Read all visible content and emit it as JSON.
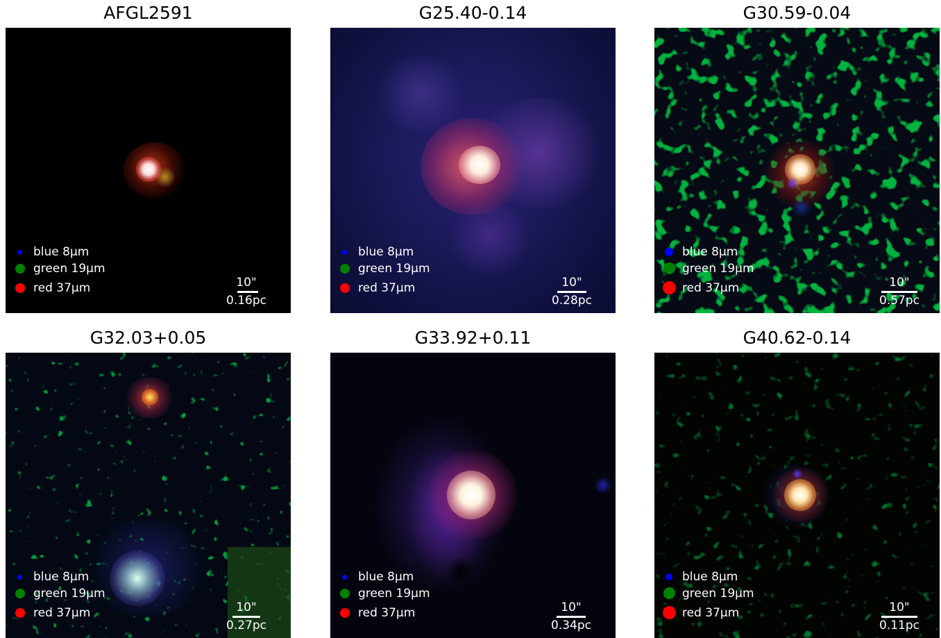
{
  "legend": {
    "blue": {
      "label": "blue 8µm",
      "color": "#0000ff"
    },
    "green": {
      "label": "green 19µm",
      "color": "#008000"
    },
    "red": {
      "label": "red 37µm",
      "color": "#ff0000"
    }
  },
  "scale_angle": "10\"",
  "panels": [
    {
      "title": "AFGL2591",
      "scale_pc": "0.16pc"
    },
    {
      "title": "G25.40-0.14",
      "scale_pc": "0.28pc"
    },
    {
      "title": "G30.59-0.04",
      "scale_pc": "0.57pc"
    },
    {
      "title": "G32.03+0.05",
      "scale_pc": "0.27pc"
    },
    {
      "title": "G33.92+0.11",
      "scale_pc": "0.34pc"
    },
    {
      "title": "G40.62-0.14",
      "scale_pc": "0.11pc"
    }
  ]
}
